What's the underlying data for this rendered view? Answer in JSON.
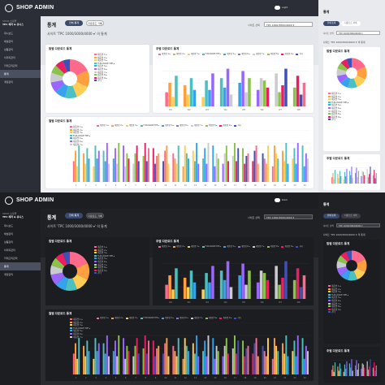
{
  "app": {
    "brand": "SHOP ADMIN",
    "theme_toggle_top": "Light",
    "theme_toggle_bottom": "Dark"
  },
  "sidebar": {
    "shop_label": "SHOP 쇼핑몰",
    "shop_name": "TPC 레저 & 유니스",
    "items": [
      {
        "label": "대시보드"
      },
      {
        "label": "채널관리"
      },
      {
        "label": "상품관리"
      },
      {
        "label": "이미지관리"
      },
      {
        "label": "카테고리관리"
      },
      {
        "label": "통계"
      },
      {
        "label": "계정관리"
      }
    ],
    "active_index": 5
  },
  "page": {
    "title": "통계",
    "tab_all": "전체 통계",
    "tab_download": "다운로드 기록",
    "site_label": "사이트 선택",
    "site_value": "TPC 1000/3000/4000 ▾",
    "summary": "사이트 'TPC 1000/3000/4000 ▾' 의 통계"
  },
  "cards": {
    "pie_title": "일별 다운로드 통계",
    "bar_title": "주별 다운로드 통계",
    "wide_title": "월별 다운로드 통계",
    "bottom_title": "연도별 다운로드 통계"
  },
  "legend_items": [
    "제품명 1 ▸",
    "제품명 2 ▸",
    "제품명 3 ▸",
    "FUN-WAKE-TPP ▸",
    "제품명 5 ▸",
    "제품명 6 ▸",
    "제품명 7 ▸",
    "제품명 8 ▸",
    "제품명 9 ▸",
    "기타"
  ],
  "colors": {
    "series": [
      "#ff6a8c",
      "#ff9f40",
      "#ffcd56",
      "#4bc0c0",
      "#36a2eb",
      "#9966ff",
      "#c9cbcf",
      "#8bc34a",
      "#e91e63",
      "#3f51b5"
    ],
    "accent": "#3a4a6e"
  },
  "chart_data": [
    {
      "type": "pie",
      "title": "일별 다운로드 통계",
      "categories": [
        "제품명 1",
        "제품명 2",
        "제품명 3",
        "FUN-WAKE-TPP",
        "제품명 5",
        "제품명 6",
        "제품명 7",
        "제품명 8",
        "제품명 9",
        "기타"
      ],
      "values": [
        18,
        14,
        12,
        10,
        9,
        9,
        8,
        7,
        7,
        6
      ]
    },
    {
      "type": "bar",
      "title": "주별 다운로드 통계",
      "categories": [
        "W1",
        "W2",
        "W3",
        "W4",
        "W5",
        "W6",
        "W7",
        "W8"
      ],
      "series": [
        {
          "values": [
            30,
            45,
            20,
            60,
            50,
            35,
            70,
            40
          ]
        },
        {
          "values": [
            50,
            25,
            55,
            40,
            75,
            60,
            30,
            65
          ]
        },
        {
          "values": [
            20,
            60,
            35,
            80,
            30,
            55,
            45,
            25
          ]
        },
        {
          "values": [
            65,
            35,
            70,
            25,
            60,
            40,
            80,
            50
          ]
        }
      ],
      "ylim": [
        0,
        100
      ]
    },
    {
      "type": "bar",
      "title": "월별 다운로드 통계",
      "categories": [
        "1",
        "2",
        "3",
        "4",
        "5",
        "6",
        "7",
        "8",
        "9",
        "10",
        "11",
        "12",
        "13",
        "14",
        "15",
        "16",
        "17",
        "18",
        "19",
        "20",
        "21",
        "22",
        "23",
        "24"
      ],
      "series": [
        {
          "values": [
            40,
            55,
            30,
            60,
            45,
            70,
            35,
            50,
            65,
            40,
            55,
            30,
            60,
            45,
            70,
            35,
            50,
            65,
            40,
            55,
            30,
            60,
            45,
            70
          ]
        },
        {
          "values": [
            60,
            35,
            70,
            40,
            65,
            30,
            55,
            75,
            35,
            60,
            45,
            70,
            40,
            65,
            30,
            55,
            75,
            35,
            60,
            45,
            70,
            40,
            65,
            30
          ]
        },
        {
          "values": [
            30,
            65,
            45,
            75,
            35,
            55,
            70,
            40,
            50,
            70,
            35,
            55,
            75,
            35,
            55,
            70,
            40,
            50,
            70,
            35,
            55,
            75,
            35,
            55
          ]
        },
        {
          "values": [
            70,
            45,
            60,
            35,
            75,
            45,
            40,
            65,
            55,
            35,
            70,
            45,
            35,
            75,
            45,
            40,
            65,
            55,
            35,
            70,
            45,
            35,
            75,
            45
          ]
        }
      ],
      "ylim": [
        0,
        100
      ]
    }
  ]
}
